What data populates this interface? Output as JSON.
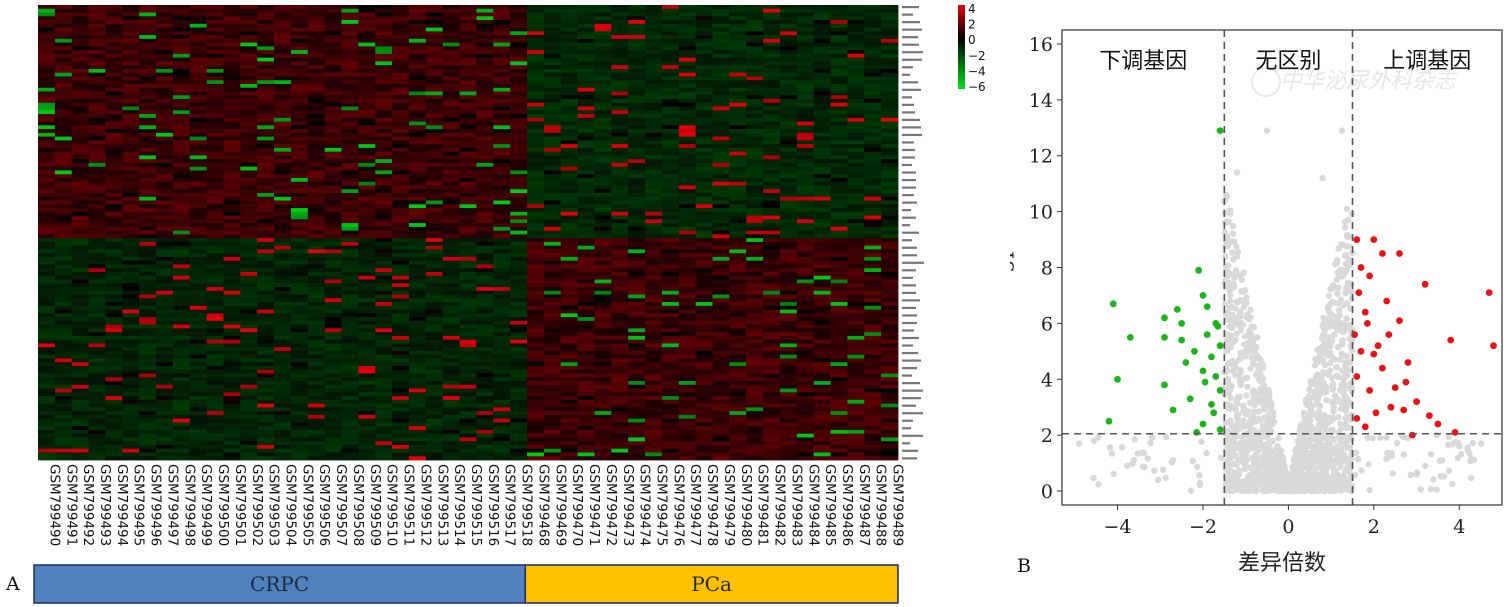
{
  "heatmap": {
    "panel_label": "A",
    "colorbar_ticks": [
      "4",
      "2",
      "0",
      "−2",
      "−4",
      "−6"
    ],
    "colorbar_range": [
      -6,
      4
    ],
    "samples": [
      "GSM799490",
      "GSM799491",
      "GSM799492",
      "GSM799493",
      "GSM799494",
      "GSM799495",
      "GSM799496",
      "GSM799497",
      "GSM799498",
      "GSM799499",
      "GSM799500",
      "GSM799501",
      "GSM799502",
      "GSM799503",
      "GSM799504",
      "GSM799505",
      "GSM799506",
      "GSM799507",
      "GSM799508",
      "GSM799509",
      "GSM799510",
      "GSM799511",
      "GSM799512",
      "GSM799513",
      "GSM799514",
      "GSM799515",
      "GSM799516",
      "GSM799517",
      "GSM799518",
      "GSM799468",
      "GSM799469",
      "GSM799470",
      "GSM799471",
      "GSM799472",
      "GSM799473",
      "GSM799474",
      "GSM799475",
      "GSM799476",
      "GSM799477",
      "GSM799478",
      "GSM799479",
      "GSM799480",
      "GSM799481",
      "GSM799482",
      "GSM799483",
      "GSM799484",
      "GSM799485",
      "GSM799486",
      "GSM799487",
      "GSM799488",
      "GSM799489"
    ],
    "groups": [
      {
        "name": "CRPC",
        "count": 29,
        "color": "#4f81bd"
      },
      {
        "name": "PCa",
        "count": 22,
        "color": "#ffc000"
      }
    ],
    "gene_count": 121,
    "upper_block_genes": 62,
    "colors": {
      "high": "#e5000c",
      "mid": "#000000",
      "low": "#00e01a"
    }
  },
  "chart_data": {
    "type": "scatter",
    "panel_label": "B",
    "xlabel": "差异倍数",
    "ylabel": "−lgp",
    "xlim": [
      -5.3,
      5.0
    ],
    "ylim": [
      -0.5,
      16.5
    ],
    "xticks": [
      -4,
      -2,
      0,
      2,
      4
    ],
    "yticks": [
      0,
      2,
      4,
      6,
      8,
      10,
      12,
      14,
      16
    ],
    "thresholds": {
      "fold_change": [
        -1.5,
        1.5
      ],
      "neg_log_p": 2.05
    },
    "regions": [
      "下调基因",
      "无区别",
      "上调基因"
    ],
    "watermark": "中华泌尿外科杂志",
    "colors": {
      "down": "#1bb51b",
      "none": "#d9d9d9",
      "up": "#e81313"
    },
    "down_genes": [
      [
        -4.1,
        6.7
      ],
      [
        -3.7,
        5.5
      ],
      [
        -4.0,
        4.0
      ],
      [
        -4.2,
        2.5
      ],
      [
        -2.9,
        6.2
      ],
      [
        -2.9,
        5.5
      ],
      [
        -2.9,
        3.8
      ],
      [
        -2.5,
        6.0
      ],
      [
        -2.5,
        5.4
      ],
      [
        -2.4,
        4.6
      ],
      [
        -2.3,
        3.3
      ],
      [
        -2.2,
        5.0
      ],
      [
        -2.1,
        7.9
      ],
      [
        -2.0,
        7.0
      ],
      [
        -2.0,
        4.3
      ],
      [
        -2.0,
        2.4
      ],
      [
        -1.9,
        6.6
      ],
      [
        -1.9,
        5.6
      ],
      [
        -1.8,
        4.8
      ],
      [
        -1.8,
        3.1
      ],
      [
        -1.7,
        6.0
      ],
      [
        -1.7,
        4.1
      ],
      [
        -1.6,
        5.2
      ],
      [
        -1.6,
        3.6
      ],
      [
        -1.6,
        2.2
      ],
      [
        -1.6,
        12.9
      ],
      [
        -2.6,
        6.5
      ],
      [
        -2.7,
        2.9
      ],
      [
        -1.95,
        3.9
      ],
      [
        -1.75,
        2.8
      ],
      [
        -1.65,
        5.9
      ],
      [
        -2.15,
        2.1
      ]
    ],
    "up_genes": [
      [
        4.7,
        7.1
      ],
      [
        4.8,
        5.2
      ],
      [
        3.8,
        5.4
      ],
      [
        3.9,
        2.1
      ],
      [
        3.2,
        7.4
      ],
      [
        3.5,
        2.4
      ],
      [
        3.0,
        3.2
      ],
      [
        2.9,
        2.0
      ],
      [
        2.8,
        4.6
      ],
      [
        2.7,
        2.9
      ],
      [
        2.6,
        8.5
      ],
      [
        2.6,
        6.1
      ],
      [
        2.5,
        3.7
      ],
      [
        2.3,
        6.8
      ],
      [
        2.2,
        8.5
      ],
      [
        2.2,
        4.4
      ],
      [
        2.1,
        5.2
      ],
      [
        2.0,
        9.0
      ],
      [
        1.9,
        7.7
      ],
      [
        1.9,
        3.6
      ],
      [
        1.8,
        6.4
      ],
      [
        1.8,
        2.3
      ],
      [
        1.7,
        8.0
      ],
      [
        1.7,
        5.0
      ],
      [
        1.6,
        9.0
      ],
      [
        1.6,
        4.1
      ],
      [
        1.6,
        2.6
      ],
      [
        2.4,
        3.0
      ],
      [
        2.0,
        4.9
      ],
      [
        1.85,
        6.0
      ],
      [
        2.35,
        5.6
      ],
      [
        3.3,
        2.7
      ],
      [
        2.75,
        3.9
      ],
      [
        1.65,
        7.1
      ],
      [
        2.05,
        2.8
      ],
      [
        1.55,
        5.6
      ]
    ],
    "nonsig_examples": [
      [
        -0.5,
        12.9
      ],
      [
        1.25,
        12.9
      ],
      [
        -1.2,
        11.4
      ],
      [
        0.8,
        11.2
      ],
      [
        -4.9,
        1.7
      ],
      [
        -4.55,
        1.8
      ],
      [
        -2.7,
        1.1
      ],
      [
        3.0,
        0.6
      ],
      [
        3.6,
        1.1
      ],
      [
        2.7,
        1.3
      ],
      [
        3.2,
        0.9
      ],
      [
        4.0,
        1.6
      ]
    ]
  }
}
